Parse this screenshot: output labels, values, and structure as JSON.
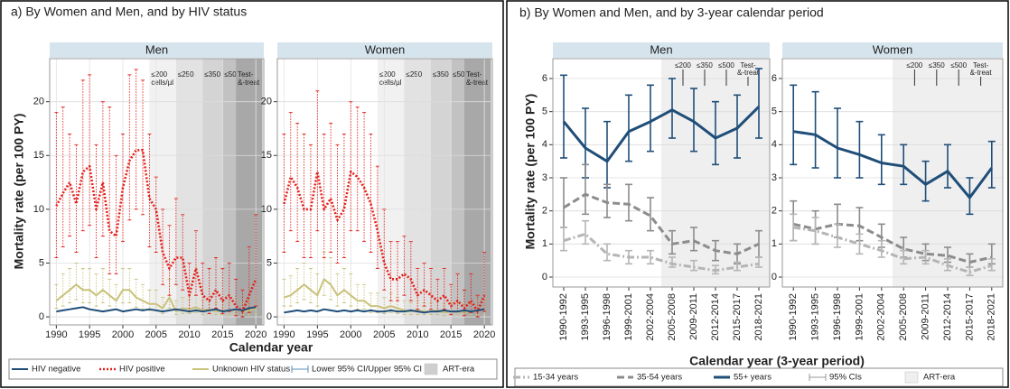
{
  "chart_data": [
    {
      "type": "line",
      "panel_title": "a)   By Women and Men, and by HIV status",
      "title": "Men",
      "x_label": "Calendar year",
      "y_label": "Mortality rate (per 100 PY)",
      "legend_extra": [
        "Lower 95% CI/Upper 95% CI",
        "ART-era"
      ],
      "x": [
        1990,
        1991,
        1992,
        1993,
        1994,
        1995,
        1996,
        1997,
        1998,
        1999,
        2000,
        2001,
        2002,
        2003,
        2004,
        2005,
        2006,
        2007,
        2008,
        2009,
        2010,
        2011,
        2012,
        2013,
        2014,
        2015,
        2016,
        2017,
        2018,
        2019,
        2020
      ],
      "xlim": [
        1989,
        2021.2
      ],
      "xticks": [
        1990,
        1995,
        2000,
        2005,
        2010,
        2015,
        2020
      ],
      "ylim": [
        -0.75,
        24
      ],
      "yticks": [
        0,
        5,
        10,
        15,
        20
      ],
      "grid": true,
      "ci_style": "dotted",
      "art_eras": [
        {
          "label": [
            "≤200",
            "cells/µl"
          ],
          "start": 2004,
          "end": 2008,
          "color": "#f1f1f1"
        },
        {
          "label": [
            "≤250"
          ],
          "start": 2008,
          "end": 2012,
          "color": "#e2e2e2"
        },
        {
          "label": [
            "≤350"
          ],
          "start": 2012,
          "end": 2015,
          "color": "#d4d4d4"
        },
        {
          "label": [
            "≤500"
          ],
          "start": 2015,
          "end": 2017,
          "color": "#c2c2c2"
        },
        {
          "label": [
            "Test-",
            "&-treat"
          ],
          "start": 2017,
          "end": 2021,
          "color": "#a8a8a8"
        }
      ],
      "series": [
        {
          "name": "HIV negative",
          "color": "#1f4e79",
          "dash": "solid",
          "values": [
            0.5,
            0.6,
            0.7,
            0.8,
            0.9,
            0.7,
            0.6,
            0.5,
            0.6,
            0.7,
            0.5,
            0.6,
            0.7,
            0.6,
            0.7,
            0.6,
            0.5,
            0.6,
            0.7,
            0.6,
            0.5,
            0.6,
            0.5,
            0.6,
            0.7,
            0.5,
            0.6,
            0.7,
            0.6,
            0.8,
            0.9
          ]
        },
        {
          "name": "HIV positive",
          "color": "#e3211c",
          "dash": "dotted",
          "values": [
            10.3,
            11.5,
            12.5,
            10.5,
            13.5,
            14,
            10,
            12.5,
            8,
            7.5,
            12,
            14.5,
            15.5,
            15.5,
            11,
            10,
            6,
            4.5,
            5.5,
            5.5,
            2,
            4.5,
            2,
            1.5,
            2.5,
            1.5,
            2,
            1,
            0.5,
            2,
            3.5
          ],
          "lower": [
            5.5,
            6.5,
            7.5,
            6,
            8,
            8.5,
            5.5,
            7.5,
            4,
            4,
            7,
            9,
            10,
            9.5,
            6.5,
            6,
            3,
            2,
            3,
            2.5,
            0.5,
            2,
            0.5,
            0.3,
            0.8,
            0.3,
            0.5,
            0.1,
            0,
            0.4,
            1
          ],
          "upper": [
            19,
            19.5,
            17,
            16,
            22,
            22.5,
            16,
            20,
            19.5,
            15,
            17,
            22.5,
            23,
            22,
            17,
            13,
            10,
            8.5,
            11,
            9.5,
            5,
            8,
            5,
            4.5,
            5.5,
            4.5,
            5,
            3.5,
            2.5,
            6.5,
            9.5
          ]
        },
        {
          "name": "Unknown HIV status",
          "color": "#c9c27c",
          "dash": "solid",
          "values": [
            1.5,
            2,
            2.5,
            3,
            2.5,
            2.5,
            2,
            2.5,
            2,
            1.5,
            2.5,
            2.5,
            1.8,
            1.5,
            1.2,
            1.2,
            0.8,
            1.8,
            0.5,
            0.8,
            0.7,
            0.9,
            0.6,
            0.7,
            0.5,
            0.6,
            0.5,
            0.7,
            0.5,
            0.6,
            0.8
          ],
          "lower": [
            0.8,
            1,
            1.3,
            1.6,
            1.3,
            1.3,
            1,
            1.3,
            1,
            0.7,
            1.3,
            1.3,
            0.9,
            0.7,
            0.6,
            0.6,
            0.3,
            0.8,
            0.2,
            0.3,
            0.3,
            0.4,
            0.2,
            0.3,
            0.2,
            0.2,
            0.2,
            0.3,
            0.2,
            0.2,
            0.3
          ],
          "upper": [
            3,
            4,
            4.5,
            5,
            4.5,
            4.5,
            4,
            4.5,
            3.5,
            3,
            4.5,
            4.5,
            3.5,
            3,
            2.5,
            2.5,
            1.8,
            3.5,
            1.5,
            1.8,
            1.6,
            2,
            1.5,
            1.6,
            1.3,
            1.5,
            1.3,
            1.6,
            1.3,
            1.5,
            1.8
          ]
        }
      ]
    },
    {
      "type": "line",
      "title": "Women",
      "x": [
        1990,
        1991,
        1992,
        1993,
        1994,
        1995,
        1996,
        1997,
        1998,
        1999,
        2000,
        2001,
        2002,
        2003,
        2004,
        2005,
        2006,
        2007,
        2008,
        2009,
        2010,
        2011,
        2012,
        2013,
        2014,
        2015,
        2016,
        2017,
        2018,
        2019,
        2020
      ],
      "xlim": [
        1989,
        2021.2
      ],
      "xticks": [
        1990,
        1995,
        2000,
        2005,
        2010,
        2015,
        2020
      ],
      "ylim": [
        -0.75,
        24
      ],
      "yticks": [
        0,
        5,
        10,
        15,
        20
      ],
      "grid": true,
      "ci_style": "dotted",
      "art_eras": [
        {
          "label": [
            "≤200",
            "cells/µl"
          ],
          "start": 2004,
          "end": 2008,
          "color": "#f1f1f1"
        },
        {
          "label": [
            "≤250"
          ],
          "start": 2008,
          "end": 2012,
          "color": "#e2e2e2"
        },
        {
          "label": [
            "≤350"
          ],
          "start": 2012,
          "end": 2015,
          "color": "#d4d4d4"
        },
        {
          "label": [
            "≤500"
          ],
          "start": 2015,
          "end": 2017,
          "color": "#c2c2c2"
        },
        {
          "label": [
            "Test-",
            "&-treat"
          ],
          "start": 2017,
          "end": 2021,
          "color": "#a8a8a8"
        }
      ],
      "series": [
        {
          "name": "HIV negative",
          "color": "#1f4e79",
          "dash": "solid",
          "values": [
            0.4,
            0.5,
            0.6,
            0.5,
            0.6,
            0.5,
            0.7,
            0.6,
            0.5,
            0.6,
            0.5,
            0.6,
            0.5,
            0.6,
            0.5,
            0.5,
            0.6,
            0.5,
            0.5,
            0.6,
            0.5,
            0.4,
            0.5,
            0.5,
            0.6,
            0.5,
            0.5,
            0.6,
            0.5,
            0.6,
            0.7
          ]
        },
        {
          "name": "HIV positive",
          "color": "#e3211c",
          "dash": "dotted",
          "values": [
            10.5,
            13,
            12,
            10,
            10,
            13.5,
            10,
            11,
            9,
            10,
            13.5,
            13,
            12,
            10.5,
            8,
            5,
            3.5,
            3.5,
            4,
            3.5,
            2,
            2.5,
            2,
            1.5,
            2,
            1,
            1.5,
            0.8,
            1.5,
            0.5,
            2
          ],
          "lower": [
            6,
            8,
            7,
            5.5,
            5.5,
            8,
            5.5,
            6,
            5,
            5.5,
            8,
            8,
            7,
            6,
            4.5,
            2.5,
            1.5,
            1.5,
            2,
            1.5,
            0.7,
            1,
            0.7,
            0.5,
            0.7,
            0.2,
            0.5,
            0.1,
            0.4,
            0,
            0.5
          ],
          "upper": [
            17,
            19,
            18,
            17,
            16,
            21,
            17,
            18,
            16,
            17,
            20,
            19.5,
            19,
            17,
            14,
            10,
            7,
            7,
            7.5,
            7,
            4.5,
            5,
            4.5,
            3.5,
            4.5,
            3,
            4,
            2.5,
            4,
            2,
            6
          ]
        },
        {
          "name": "Unknown HIV status",
          "color": "#c9c27c",
          "dash": "solid",
          "values": [
            1.8,
            2,
            2.5,
            3,
            2.5,
            2,
            3.5,
            3,
            2,
            2.5,
            2,
            1.5,
            1.5,
            1,
            1,
            0.8,
            1,
            0.8,
            0.6,
            0.5,
            0.6,
            0.5,
            0.5,
            0.6,
            0.4,
            0.5,
            0.5,
            0.4,
            0.5,
            0.6,
            0.7
          ],
          "lower": [
            1,
            1,
            1.3,
            1.6,
            1.3,
            1,
            2,
            1.6,
            1,
            1.3,
            1,
            0.7,
            0.7,
            0.4,
            0.4,
            0.3,
            0.4,
            0.3,
            0.2,
            0.2,
            0.2,
            0.2,
            0.2,
            0.2,
            0.1,
            0.2,
            0.2,
            0.1,
            0.2,
            0.2,
            0.2
          ],
          "upper": [
            3.5,
            3.8,
            4.5,
            5,
            4.5,
            4,
            6,
            5.5,
            4,
            4.5,
            4,
            3,
            3,
            2.2,
            2.2,
            1.8,
            2.2,
            1.8,
            1.5,
            1.3,
            1.5,
            1.3,
            1.3,
            1.5,
            1.2,
            1.3,
            1.3,
            1.2,
            1.3,
            1.5,
            1.7
          ]
        }
      ]
    },
    {
      "type": "line",
      "panel_title": "b) By Women and Men, and by 3-year calendar period",
      "title": "Men",
      "x_label": "Calendar year (3-year period)",
      "y_label": "Mortality rate (per 100 PY)",
      "legend_extra": [
        "95% CIs",
        "ART-era"
      ],
      "categories": [
        "1990-1992",
        "1993-1995",
        "1996-1998",
        "1999-2001",
        "2002-2004",
        "2005-2008",
        "2009-2011",
        "2012-2014",
        "2015-2017",
        "2018-2021"
      ],
      "ylim": [
        -0.3,
        6.6
      ],
      "yticks": [
        0,
        1,
        2,
        3,
        4,
        5,
        6
      ],
      "grid": true,
      "ci_style": "solid",
      "art_era_from": "2005-2008",
      "art_markers": [
        {
          "label": [
            "≤200"
          ],
          "from": "2009-2011"
        },
        {
          "label": [
            "≤350"
          ],
          "from": "2012-2014"
        },
        {
          "label": [
            "≤500"
          ],
          "from": "2015-2017"
        },
        {
          "label": [
            "Test-",
            "&-treat"
          ],
          "from": "2018-2021"
        }
      ],
      "series": [
        {
          "name": "15-34 years",
          "color": "#b5b5b5",
          "dash": "dashdot",
          "values": [
            1.1,
            1.3,
            0.7,
            0.6,
            0.6,
            0.4,
            0.3,
            0.2,
            0.3,
            0.4
          ],
          "lower": [
            0.8,
            1.0,
            0.5,
            0.4,
            0.4,
            0.3,
            0.2,
            0.1,
            0.2,
            0.3
          ],
          "upper": [
            1.5,
            1.7,
            1.0,
            0.8,
            0.8,
            0.6,
            0.5,
            0.35,
            0.45,
            0.6
          ]
        },
        {
          "name": "35-54 years",
          "color": "#8c8c8c",
          "dash": "dashed",
          "values": [
            2.1,
            2.5,
            2.25,
            2.2,
            1.85,
            1.0,
            1.1,
            0.8,
            0.7,
            1.0
          ],
          "lower": [
            1.5,
            1.9,
            1.8,
            1.7,
            1.4,
            0.7,
            0.8,
            0.5,
            0.4,
            0.6
          ],
          "upper": [
            3.0,
            3.4,
            2.8,
            2.8,
            2.4,
            1.4,
            1.5,
            1.1,
            1.0,
            1.4
          ]
        },
        {
          "name": "55+ years",
          "color": "#1f4e79",
          "dash": "solid",
          "values": [
            4.7,
            3.9,
            3.5,
            4.4,
            4.7,
            5.05,
            4.7,
            4.2,
            4.5,
            5.15
          ],
          "lower": [
            3.6,
            3.0,
            2.7,
            3.5,
            3.8,
            4.2,
            3.8,
            3.4,
            3.6,
            4.2
          ],
          "upper": [
            6.1,
            5.1,
            4.7,
            5.5,
            5.8,
            6.0,
            5.7,
            5.3,
            5.5,
            6.3
          ]
        }
      ]
    },
    {
      "type": "line",
      "title": "Women",
      "categories": [
        "1990-1992",
        "1993-1995",
        "1996-1998",
        "1999-2001",
        "2002-2004",
        "2005-2008",
        "2009-2011",
        "2012-2014",
        "2015-2017",
        "2018-2021"
      ],
      "ylim": [
        -0.3,
        6.6
      ],
      "yticks": [
        0,
        1,
        2,
        3,
        4,
        5,
        6
      ],
      "grid": true,
      "ci_style": "solid",
      "art_era_from": "2005-2008",
      "art_markers": [
        {
          "label": [
            "≤200"
          ],
          "from": "2009-2011"
        },
        {
          "label": [
            "≤350"
          ],
          "from": "2012-2014"
        },
        {
          "label": [
            "≤500"
          ],
          "from": "2015-2017"
        },
        {
          "label": [
            "Test-",
            "&-treat"
          ],
          "from": "2018-2021"
        }
      ],
      "series": [
        {
          "name": "15-34 years",
          "color": "#b5b5b5",
          "dash": "dashdot",
          "values": [
            1.5,
            1.4,
            1.2,
            1.0,
            0.8,
            0.55,
            0.6,
            0.35,
            0.15,
            0.35
          ],
          "lower": [
            1.1,
            1.0,
            0.9,
            0.7,
            0.6,
            0.4,
            0.4,
            0.2,
            0.05,
            0.2
          ],
          "upper": [
            1.9,
            1.8,
            1.6,
            1.3,
            1.1,
            0.8,
            0.8,
            0.55,
            0.3,
            0.55
          ]
        },
        {
          "name": "35-54 years",
          "color": "#8c8c8c",
          "dash": "dashed",
          "values": [
            1.6,
            1.45,
            1.6,
            1.55,
            1.2,
            0.85,
            0.7,
            0.65,
            0.45,
            0.6
          ],
          "lower": [
            1.1,
            1.0,
            1.2,
            1.1,
            0.9,
            0.6,
            0.5,
            0.45,
            0.3,
            0.4
          ],
          "upper": [
            2.3,
            2.0,
            2.2,
            2.1,
            1.6,
            1.2,
            1.0,
            0.9,
            0.7,
            1.0
          ]
        },
        {
          "name": "55+ years",
          "color": "#1f4e79",
          "dash": "solid",
          "values": [
            4.4,
            4.3,
            3.9,
            3.7,
            3.45,
            3.35,
            2.8,
            3.2,
            2.4,
            3.3
          ],
          "lower": [
            3.4,
            3.3,
            3.0,
            3.0,
            2.8,
            2.8,
            2.3,
            2.7,
            1.9,
            2.7
          ],
          "upper": [
            5.8,
            5.6,
            5.1,
            4.7,
            4.3,
            4.0,
            3.5,
            4.0,
            3.0,
            4.1
          ]
        }
      ]
    }
  ]
}
